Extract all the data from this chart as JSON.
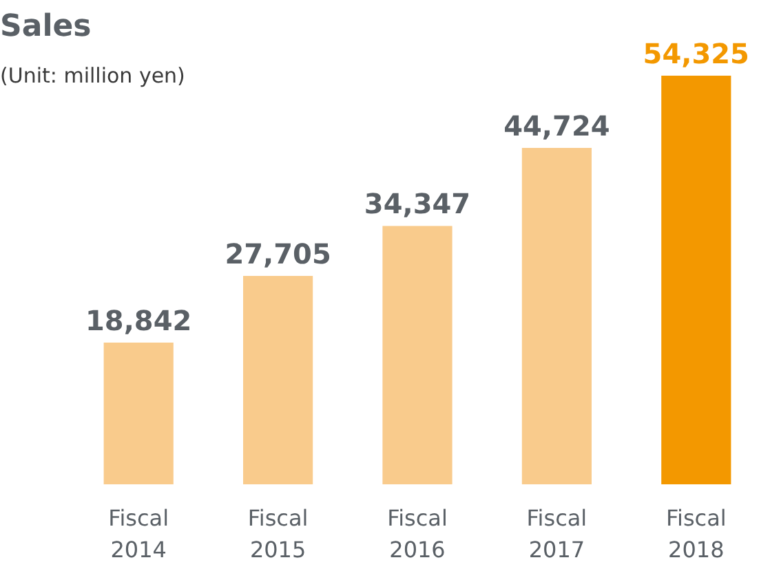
{
  "chart_data": {
    "type": "bar",
    "title": "Sales",
    "subtitle": "(Unit: million yen)",
    "categories": [
      "Fiscal 2014",
      "Fiscal 2015",
      "Fiscal 2016",
      "Fiscal 2017",
      "Fiscal 2018"
    ],
    "values": [
      18842,
      27705,
      34347,
      44724,
      54325
    ],
    "colors": [
      "#f9cb8c",
      "#f9cb8c",
      "#f9cb8c",
      "#f9cb8c",
      "#f39800"
    ],
    "value_labels": [
      "18,842",
      "27,705",
      "34,347",
      "44,724",
      "54,325"
    ]
  }
}
